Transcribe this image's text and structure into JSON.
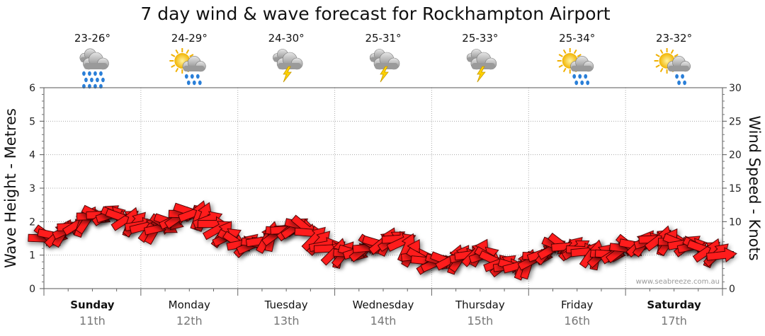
{
  "chart_data": {
    "type": "line",
    "title": "7 day wind & wave forecast for Rockhampton Airport",
    "y_left": {
      "label": "Wave Height - Metres",
      "range": [
        0,
        6
      ],
      "ticks": [
        0,
        1,
        2,
        3,
        4,
        5,
        6
      ]
    },
    "y_right": {
      "label": "Wind Speed - Knots",
      "range": [
        0,
        30
      ],
      "ticks": [
        0,
        5,
        10,
        15,
        20,
        25,
        30
      ]
    },
    "days": [
      {
        "name": "Sunday",
        "date": "11th",
        "temp": "23-26°",
        "icon": "rain-cloud-icon",
        "bold": true
      },
      {
        "name": "Monday",
        "date": "12th",
        "temp": "24-29°",
        "icon": "sun-cloud-rain-icon",
        "bold": false
      },
      {
        "name": "Tuesday",
        "date": "13th",
        "temp": "24-30°",
        "icon": "storm-cloud-icon",
        "bold": false
      },
      {
        "name": "Wednesday",
        "date": "14th",
        "temp": "25-31°",
        "icon": "storm-cloud-icon",
        "bold": false
      },
      {
        "name": "Thursday",
        "date": "15th",
        "temp": "25-33°",
        "icon": "storm-cloud-icon",
        "bold": false
      },
      {
        "name": "Friday",
        "date": "16th",
        "temp": "25-34°",
        "icon": "sun-cloud-rain-icon",
        "bold": false
      },
      {
        "name": "Saturday",
        "date": "17th",
        "temp": "23-32°",
        "icon": "sun-cloud-shower-icon",
        "bold": true
      }
    ],
    "grid": true,
    "watermark": "www.seabreeze.com.au",
    "series": [
      {
        "x": [
          0.0,
          0.17,
          0.33,
          0.5,
          0.67,
          0.83,
          1.0,
          1.17,
          1.33,
          1.5,
          1.67,
          1.83,
          2.0,
          2.17,
          2.33,
          2.5,
          2.67,
          2.83,
          3.0,
          3.17,
          3.33,
          3.5,
          3.67,
          3.83,
          4.0,
          4.17,
          4.33,
          4.5,
          4.67,
          4.83,
          5.0,
          5.17,
          5.33,
          5.5,
          5.67,
          5.83,
          6.0,
          6.17,
          6.33,
          6.5,
          6.67,
          6.83,
          7.0
        ],
        "values": [
          7.5,
          8.2,
          9.5,
          10.8,
          11.2,
          10.5,
          9.5,
          8.8,
          10.2,
          11.5,
          10.8,
          8.5,
          6.8,
          6.5,
          7.8,
          8.8,
          9.5,
          7.2,
          5.5,
          5.2,
          6.0,
          7.0,
          7.5,
          5.0,
          3.8,
          4.2,
          4.8,
          5.5,
          4.0,
          3.2,
          3.8,
          5.5,
          6.5,
          6.0,
          5.2,
          5.0,
          6.0,
          6.8,
          7.5,
          7.0,
          6.5,
          5.8,
          5.0
        ]
      }
    ]
  }
}
